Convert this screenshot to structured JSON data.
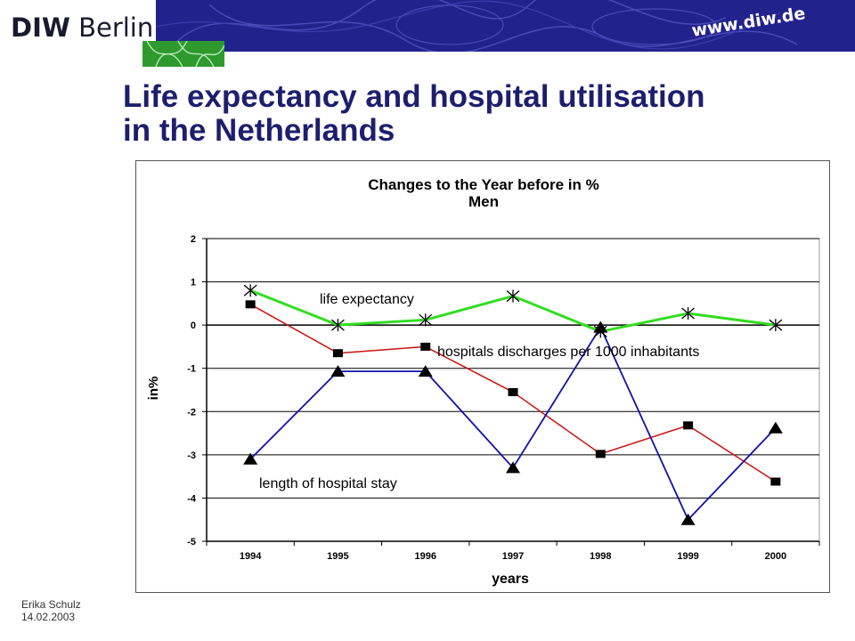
{
  "logo": {
    "brand": "DIW",
    "city": "Berlin"
  },
  "banner": {
    "url": "www.diw.de"
  },
  "slide": {
    "title_line1": "Life expectancy and hospital utilisation",
    "title_line2": "in the Netherlands"
  },
  "footer": {
    "author": "Erika Schulz",
    "date": "14.02.2003"
  },
  "colors": {
    "life_expectancy": "#33dd22",
    "discharges": "#cc1111",
    "stay": "#1111aa",
    "title": "#1e1e6e",
    "banner": "#22228c"
  },
  "chart_data": {
    "type": "line",
    "title": "Changes to the Year before in %",
    "subtitle": "Men",
    "xlabel": "years",
    "ylabel": "in%",
    "categories": [
      "1994",
      "1995",
      "1996",
      "1997",
      "1998",
      "1999",
      "2000"
    ],
    "ylim": [
      -5,
      2
    ],
    "yticks": [
      "2",
      "1",
      "0",
      "-1",
      "-2",
      "-3",
      "-4",
      "-5"
    ],
    "grid": true,
    "series": [
      {
        "name": "life expectancy",
        "marker": "asterisk",
        "values": [
          0.8,
          0.0,
          0.12,
          0.67,
          -0.15,
          0.27,
          0.0
        ]
      },
      {
        "name": "hospitals discharges per 1000 inhabitants",
        "marker": "square",
        "values": [
          0.48,
          -0.65,
          -0.5,
          -1.55,
          -2.98,
          -2.32,
          -3.62
        ]
      },
      {
        "name": "length of hospital stay",
        "marker": "triangle",
        "values": [
          -3.1,
          -1.07,
          -1.07,
          -3.3,
          -0.05,
          -4.5,
          -2.38
        ]
      }
    ]
  }
}
